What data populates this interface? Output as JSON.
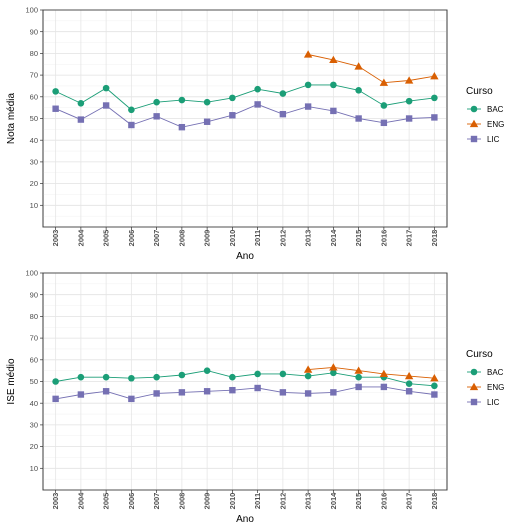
{
  "colors": {
    "BAC": "#1b9e77",
    "ENG": "#d95f02",
    "LIC": "#7570b3"
  },
  "chart_data": [
    {
      "type": "line",
      "xlabel": "Ano",
      "ylabel": "Nota média",
      "ylim": [
        0,
        100
      ],
      "yticks": [
        10,
        20,
        30,
        40,
        50,
        60,
        70,
        80,
        90,
        100
      ],
      "grid": true,
      "legend_title": "Curso",
      "legend_position": "right",
      "categories": [
        "2003",
        "2004",
        "2005",
        "2006",
        "2007",
        "2008",
        "2009",
        "2010",
        "2011",
        "2012",
        "2013",
        "2014",
        "2015",
        "2016",
        "2017",
        "2018"
      ],
      "series": [
        {
          "name": "BAC",
          "marker": "circle",
          "values": [
            62.5,
            57,
            64,
            54,
            57.5,
            58.5,
            57.5,
            59.5,
            63.5,
            61.5,
            65.5,
            65.5,
            63,
            56,
            58,
            59.5
          ]
        },
        {
          "name": "ENG",
          "marker": "triangle",
          "values": [
            null,
            null,
            null,
            null,
            null,
            null,
            null,
            null,
            null,
            null,
            79.5,
            77,
            74,
            66.5,
            67.5,
            69.5
          ]
        },
        {
          "name": "LIC",
          "marker": "square",
          "values": [
            54.5,
            49.5,
            56,
            47,
            51,
            46,
            48.5,
            51.5,
            56.5,
            52,
            55.5,
            53.5,
            50,
            48,
            50,
            50.5
          ]
        }
      ]
    },
    {
      "type": "line",
      "xlabel": "Ano",
      "ylabel": "ISE médio",
      "ylim": [
        0,
        100
      ],
      "yticks": [
        10,
        20,
        30,
        40,
        50,
        60,
        70,
        80,
        90,
        100
      ],
      "grid": true,
      "legend_title": "Curso",
      "legend_position": "right",
      "categories": [
        "2003",
        "2004",
        "2005",
        "2006",
        "2007",
        "2008",
        "2009",
        "2010",
        "2011",
        "2012",
        "2013",
        "2014",
        "2015",
        "2016",
        "2017",
        "2018"
      ],
      "series": [
        {
          "name": "BAC",
          "marker": "circle",
          "values": [
            50,
            52,
            52,
            51.5,
            52,
            53,
            55,
            52,
            53.5,
            53.5,
            52.5,
            54,
            52,
            52,
            49,
            48
          ]
        },
        {
          "name": "ENG",
          "marker": "triangle",
          "values": [
            null,
            null,
            null,
            null,
            null,
            null,
            null,
            null,
            null,
            null,
            55.5,
            56.5,
            55,
            53.5,
            52.5,
            51.5
          ]
        },
        {
          "name": "LIC",
          "marker": "square",
          "values": [
            42,
            44,
            45.5,
            42,
            44.5,
            45,
            45.5,
            46,
            47,
            45,
            44.5,
            45,
            47.5,
            47.5,
            45.5,
            44
          ]
        }
      ]
    }
  ]
}
